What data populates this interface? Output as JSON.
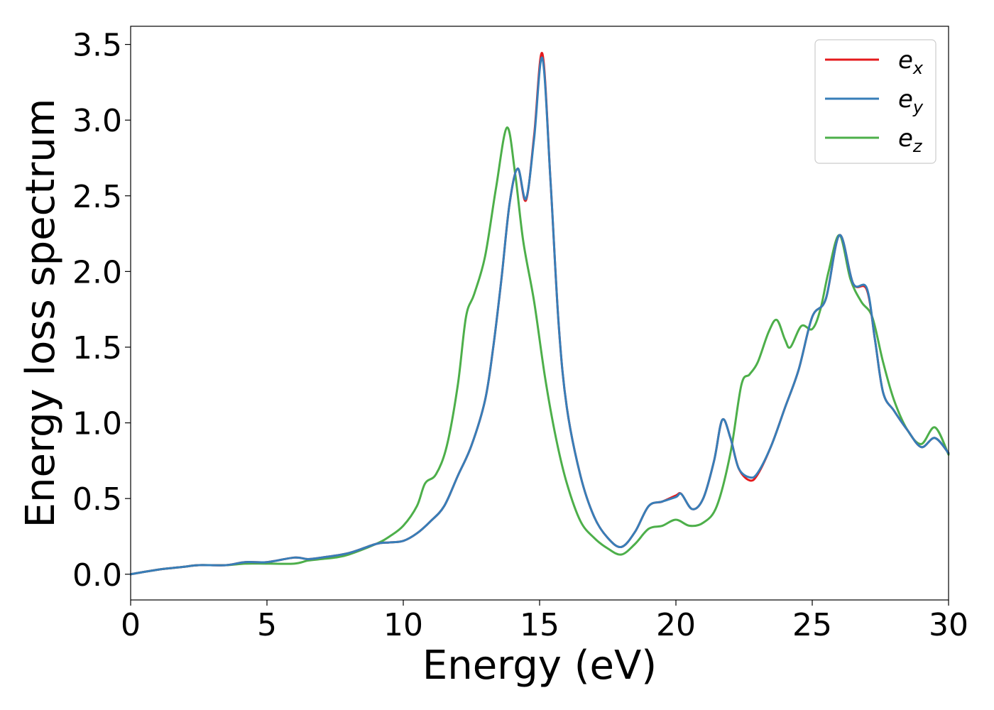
{
  "chart_data": {
    "type": "line",
    "xlabel": "Energy (eV)",
    "ylabel": "Energy loss spectrum",
    "xlim": [
      0,
      30
    ],
    "ylim": [
      -0.17,
      3.62
    ],
    "xticks": [
      0,
      5,
      10,
      15,
      20,
      25,
      30
    ],
    "xtick_labels": [
      "0",
      "5",
      "10",
      "15",
      "20",
      "25",
      "30"
    ],
    "yticks": [
      0.0,
      0.5,
      1.0,
      1.5,
      2.0,
      2.5,
      3.0,
      3.5
    ],
    "ytick_labels": [
      "0.0",
      "0.5",
      "1.0",
      "1.5",
      "2.0",
      "2.5",
      "3.0",
      "3.5"
    ],
    "grid": false,
    "legend_position": "top-right",
    "series": [
      {
        "name": "e_x",
        "label_main": "e",
        "label_sub": "x",
        "color": "#e41a1c",
        "x": [
          0,
          1,
          2,
          2.5,
          3.5,
          4.2,
          5,
          6,
          6.5,
          7,
          8,
          9,
          9.5,
          10,
          10.5,
          11,
          11.5,
          12,
          12.5,
          13,
          13.3,
          13.6,
          13.9,
          14.2,
          14.5,
          14.8,
          15.1,
          15.4,
          15.7,
          16,
          16.5,
          17,
          17.5,
          18,
          18.5,
          19,
          19.5,
          20,
          20.2,
          20.6,
          21,
          21.4,
          21.7,
          22,
          22.3,
          22.7,
          23,
          23.5,
          24,
          24.5,
          25,
          25.5,
          26,
          26.5,
          27,
          27.3,
          27.6,
          28,
          28.5,
          29,
          29.5,
          30
        ],
        "y": [
          0.0,
          0.03,
          0.05,
          0.06,
          0.06,
          0.08,
          0.08,
          0.11,
          0.1,
          0.11,
          0.14,
          0.2,
          0.21,
          0.22,
          0.27,
          0.35,
          0.45,
          0.65,
          0.85,
          1.15,
          1.5,
          1.95,
          2.45,
          2.68,
          2.47,
          2.9,
          3.44,
          2.6,
          1.65,
          1.1,
          0.65,
          0.38,
          0.24,
          0.18,
          0.28,
          0.45,
          0.48,
          0.52,
          0.53,
          0.43,
          0.5,
          0.75,
          1.02,
          0.9,
          0.7,
          0.62,
          0.66,
          0.85,
          1.1,
          1.35,
          1.7,
          1.82,
          2.24,
          1.92,
          1.88,
          1.55,
          1.2,
          1.08,
          0.95,
          0.84,
          0.9,
          0.8
        ]
      },
      {
        "name": "e_y",
        "label_main": "e",
        "label_sub": "y",
        "color": "#377eb8",
        "x": [
          0,
          1,
          2,
          2.5,
          3.5,
          4.2,
          5,
          6,
          6.5,
          7,
          8,
          9,
          9.5,
          10,
          10.5,
          11,
          11.5,
          12,
          12.5,
          13,
          13.3,
          13.6,
          13.9,
          14.2,
          14.5,
          14.8,
          15.1,
          15.4,
          15.7,
          16,
          16.5,
          17,
          17.5,
          18,
          18.5,
          19,
          19.5,
          20,
          20.2,
          20.6,
          21,
          21.4,
          21.7,
          22,
          22.3,
          22.7,
          23,
          23.5,
          24,
          24.5,
          25,
          25.5,
          26,
          26.5,
          27,
          27.3,
          27.6,
          28,
          28.5,
          29,
          29.5,
          30
        ],
        "y": [
          0.0,
          0.03,
          0.05,
          0.06,
          0.06,
          0.08,
          0.08,
          0.11,
          0.1,
          0.11,
          0.14,
          0.2,
          0.21,
          0.22,
          0.27,
          0.35,
          0.45,
          0.65,
          0.85,
          1.15,
          1.5,
          1.95,
          2.45,
          2.68,
          2.48,
          2.88,
          3.41,
          2.6,
          1.65,
          1.1,
          0.65,
          0.38,
          0.24,
          0.18,
          0.28,
          0.45,
          0.48,
          0.51,
          0.53,
          0.43,
          0.5,
          0.75,
          1.02,
          0.9,
          0.7,
          0.64,
          0.67,
          0.85,
          1.1,
          1.35,
          1.7,
          1.82,
          2.24,
          1.92,
          1.89,
          1.55,
          1.2,
          1.08,
          0.95,
          0.84,
          0.9,
          0.8
        ]
      },
      {
        "name": "e_z",
        "label_main": "e",
        "label_sub": "z",
        "color": "#4daf4a",
        "x": [
          0,
          1,
          2,
          2.5,
          3.5,
          4.2,
          5,
          6,
          6.5,
          7,
          7.5,
          8,
          9,
          9.5,
          10,
          10.5,
          10.8,
          11.2,
          11.6,
          12,
          12.3,
          12.6,
          13,
          13.4,
          13.8,
          14.1,
          14.4,
          14.8,
          15.2,
          15.6,
          16,
          16.5,
          17,
          17.5,
          18,
          18.5,
          19,
          19.5,
          20,
          20.5,
          21,
          21.5,
          22,
          22.4,
          22.7,
          23,
          23.4,
          23.7,
          24,
          24.2,
          24.6,
          25,
          25.3,
          25.6,
          26,
          26.4,
          26.8,
          27.2,
          27.6,
          28,
          28.5,
          29,
          29.5,
          30
        ],
        "y": [
          0.0,
          0.03,
          0.05,
          0.06,
          0.06,
          0.07,
          0.07,
          0.07,
          0.09,
          0.1,
          0.11,
          0.13,
          0.2,
          0.25,
          0.32,
          0.45,
          0.6,
          0.66,
          0.85,
          1.25,
          1.7,
          1.85,
          2.1,
          2.55,
          2.95,
          2.65,
          2.2,
          1.8,
          1.3,
          0.9,
          0.6,
          0.35,
          0.24,
          0.17,
          0.13,
          0.2,
          0.3,
          0.32,
          0.36,
          0.32,
          0.34,
          0.45,
          0.8,
          1.25,
          1.32,
          1.4,
          1.6,
          1.68,
          1.55,
          1.5,
          1.64,
          1.62,
          1.75,
          2.0,
          2.24,
          1.95,
          1.8,
          1.7,
          1.4,
          1.15,
          0.95,
          0.86,
          0.97,
          0.79
        ]
      }
    ]
  }
}
